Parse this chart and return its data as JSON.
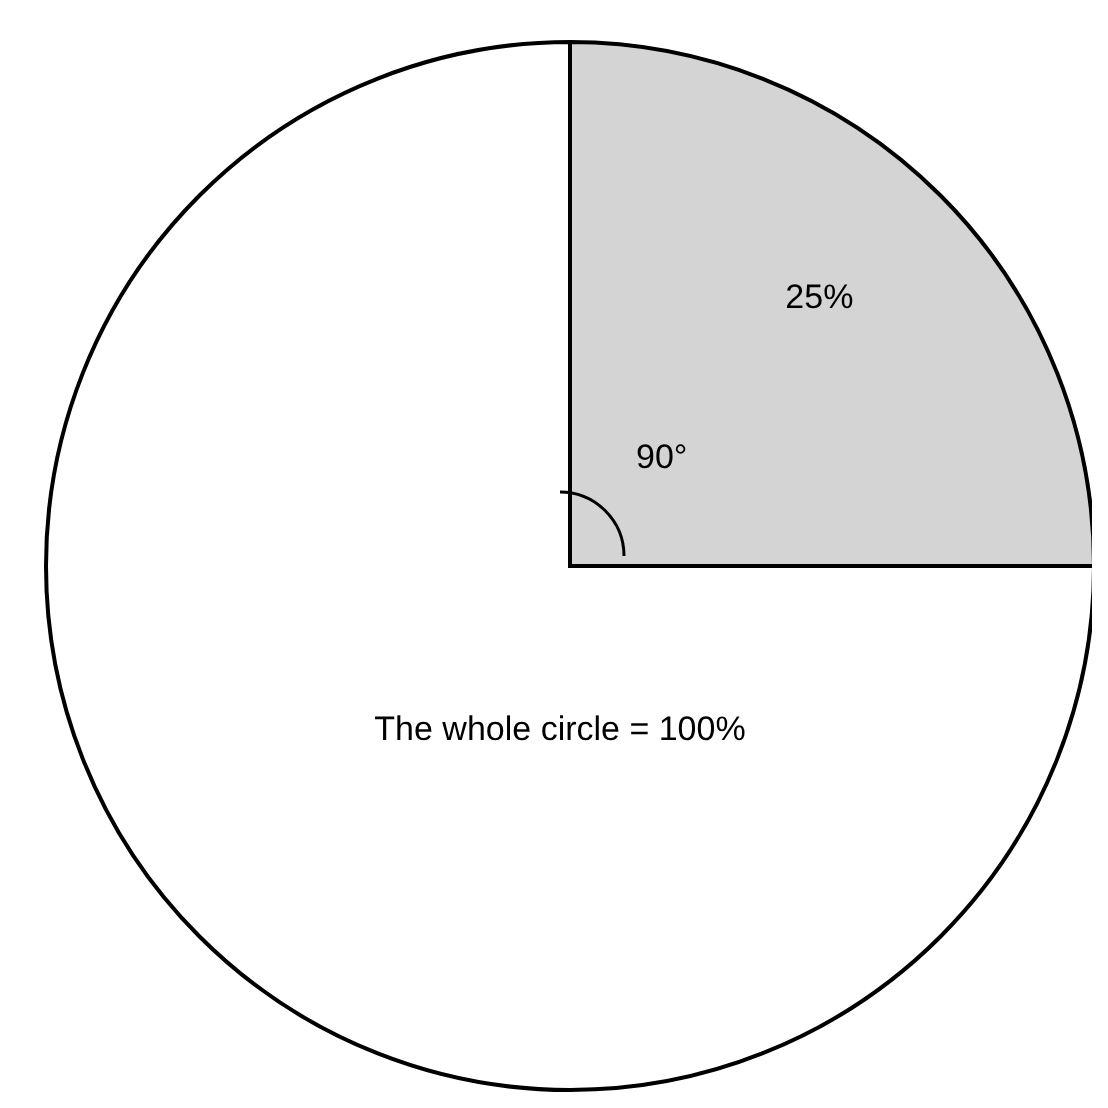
{
  "chart_data": {
    "type": "pie",
    "categories": [
      null,
      null
    ],
    "values": [
      25,
      75
    ],
    "colors": [
      "#d4d4d4",
      "#ffffff"
    ],
    "value_labels": [
      "25%",
      null
    ],
    "annotations": [
      "90°",
      "The whole circle = 100%"
    ]
  }
}
